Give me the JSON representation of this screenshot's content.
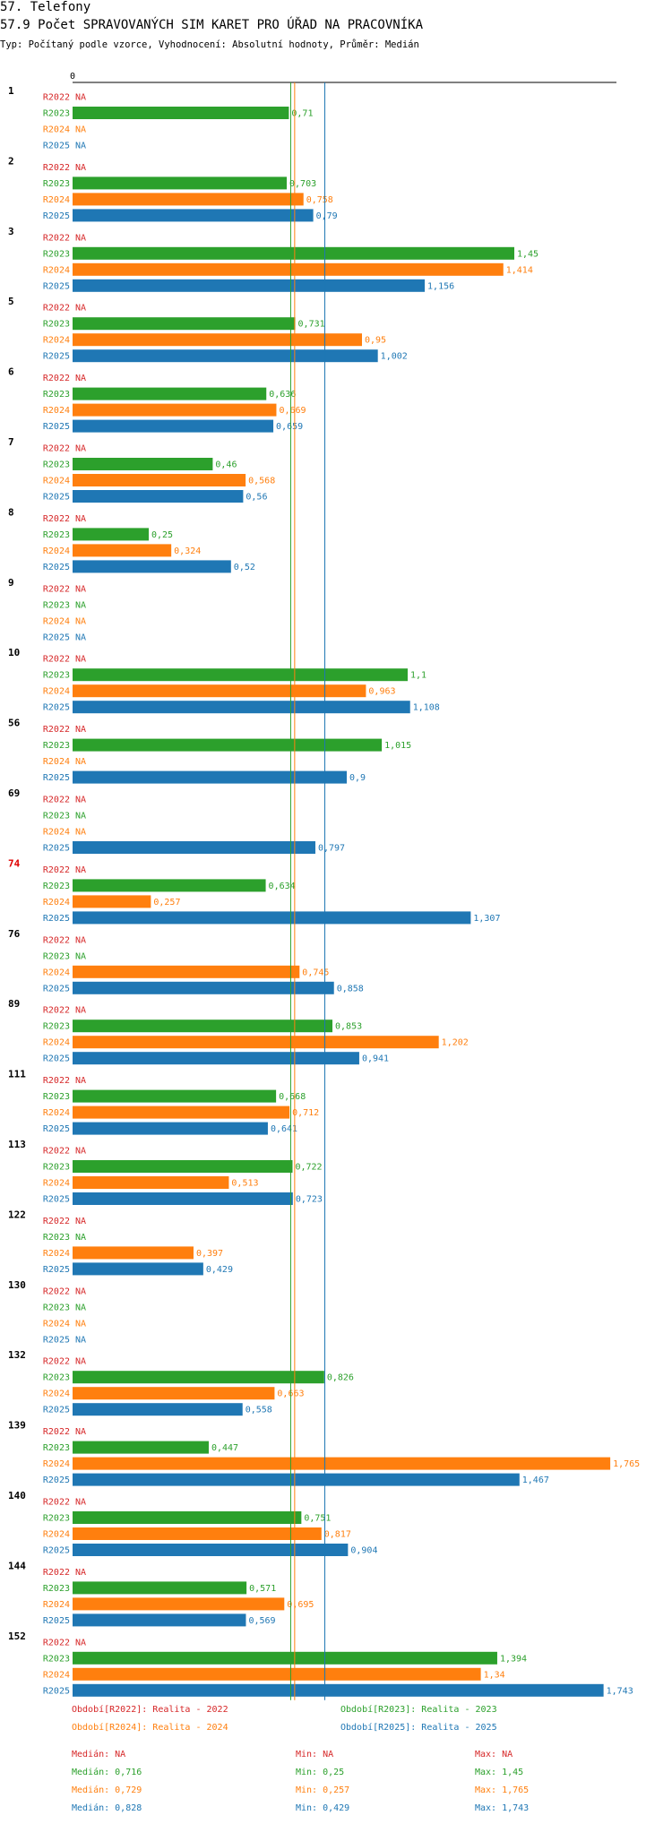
{
  "header": {
    "section": "57. Telefony",
    "title": "57.9 Počet SPRAVOVANÝCH SIM KARET PRO ÚŘAD NA PRACOVNÍKA",
    "subtitle": "Typ: Počítaný podle vzorce, Vyhodnocení: Absolutní hodnoty, Průměr: Medián"
  },
  "chart_data": {
    "type": "bar",
    "orientation": "horizontal",
    "axis_zero_label": "0",
    "xlim": [
      0,
      1.8
    ],
    "na_label": "NA",
    "series": [
      {
        "key": "R2022",
        "label": "R2022",
        "color": "#d62728"
      },
      {
        "key": "R2023",
        "label": "R2023",
        "color": "#2ca02c"
      },
      {
        "key": "R2024",
        "label": "R2024",
        "color": "#ff7f0e"
      },
      {
        "key": "R2025",
        "label": "R2025",
        "color": "#1f77b4"
      }
    ],
    "groups": [
      {
        "id": "1",
        "highlight": false,
        "values": [
          null,
          0.71,
          null,
          null
        ]
      },
      {
        "id": "2",
        "highlight": false,
        "values": [
          null,
          0.703,
          0.758,
          0.79
        ]
      },
      {
        "id": "3",
        "highlight": false,
        "values": [
          null,
          1.45,
          1.414,
          1.156
        ]
      },
      {
        "id": "5",
        "highlight": false,
        "values": [
          null,
          0.731,
          0.95,
          1.002
        ]
      },
      {
        "id": "6",
        "highlight": false,
        "values": [
          null,
          0.636,
          0.669,
          0.659
        ]
      },
      {
        "id": "7",
        "highlight": false,
        "values": [
          null,
          0.46,
          0.568,
          0.56
        ]
      },
      {
        "id": "8",
        "highlight": false,
        "values": [
          null,
          0.25,
          0.324,
          0.52
        ]
      },
      {
        "id": "9",
        "highlight": false,
        "values": [
          null,
          null,
          null,
          null
        ]
      },
      {
        "id": "10",
        "highlight": false,
        "values": [
          null,
          1.1,
          0.963,
          1.108
        ]
      },
      {
        "id": "56",
        "highlight": false,
        "values": [
          null,
          1.015,
          null,
          0.9
        ]
      },
      {
        "id": "69",
        "highlight": false,
        "values": [
          null,
          null,
          null,
          0.797
        ]
      },
      {
        "id": "74",
        "highlight": true,
        "values": [
          null,
          0.634,
          0.257,
          1.307
        ]
      },
      {
        "id": "76",
        "highlight": false,
        "values": [
          null,
          null,
          0.745,
          0.858
        ]
      },
      {
        "id": "89",
        "highlight": false,
        "values": [
          null,
          0.853,
          1.202,
          0.941
        ]
      },
      {
        "id": "111",
        "highlight": false,
        "values": [
          null,
          0.668,
          0.712,
          0.641
        ]
      },
      {
        "id": "113",
        "highlight": false,
        "values": [
          null,
          0.722,
          0.513,
          0.723
        ]
      },
      {
        "id": "122",
        "highlight": false,
        "values": [
          null,
          null,
          0.397,
          0.429
        ]
      },
      {
        "id": "130",
        "highlight": false,
        "values": [
          null,
          null,
          null,
          null
        ]
      },
      {
        "id": "132",
        "highlight": false,
        "values": [
          null,
          0.826,
          0.663,
          0.558
        ]
      },
      {
        "id": "139",
        "highlight": false,
        "values": [
          null,
          0.447,
          1.765,
          1.467
        ]
      },
      {
        "id": "140",
        "highlight": false,
        "values": [
          null,
          0.751,
          0.817,
          0.904
        ]
      },
      {
        "id": "144",
        "highlight": false,
        "values": [
          null,
          0.571,
          0.695,
          0.569
        ]
      },
      {
        "id": "152",
        "highlight": false,
        "values": [
          null,
          1.394,
          1.34,
          1.743
        ]
      }
    ],
    "median_lines": [
      {
        "series": "R2023",
        "value": 0.716
      },
      {
        "series": "R2024",
        "value": 0.729
      },
      {
        "series": "R2025",
        "value": 0.828
      }
    ],
    "legend": [
      {
        "text": "Období[R2022]: Realita - 2022",
        "color": "#d62728"
      },
      {
        "text": "Období[R2023]: Realita - 2023",
        "color": "#2ca02c"
      },
      {
        "text": "Období[R2024]: Realita - 2024",
        "color": "#ff7f0e"
      },
      {
        "text": "Období[R2025]: Realita - 2025",
        "color": "#1f77b4"
      }
    ],
    "stats": [
      {
        "median": "Medián: NA",
        "min": "Min: NA",
        "max": "Max: NA",
        "color": "#d62728"
      },
      {
        "median": "Medián: 0,716",
        "min": "Min: 0,25",
        "max": "Max: 1,45",
        "color": "#2ca02c"
      },
      {
        "median": "Medián: 0,729",
        "min": "Min: 0,257",
        "max": "Max: 1,765",
        "color": "#ff7f0e"
      },
      {
        "median": "Medián: 0,828",
        "min": "Min: 0,429",
        "max": "Max: 1,743",
        "color": "#1f77b4"
      }
    ]
  }
}
